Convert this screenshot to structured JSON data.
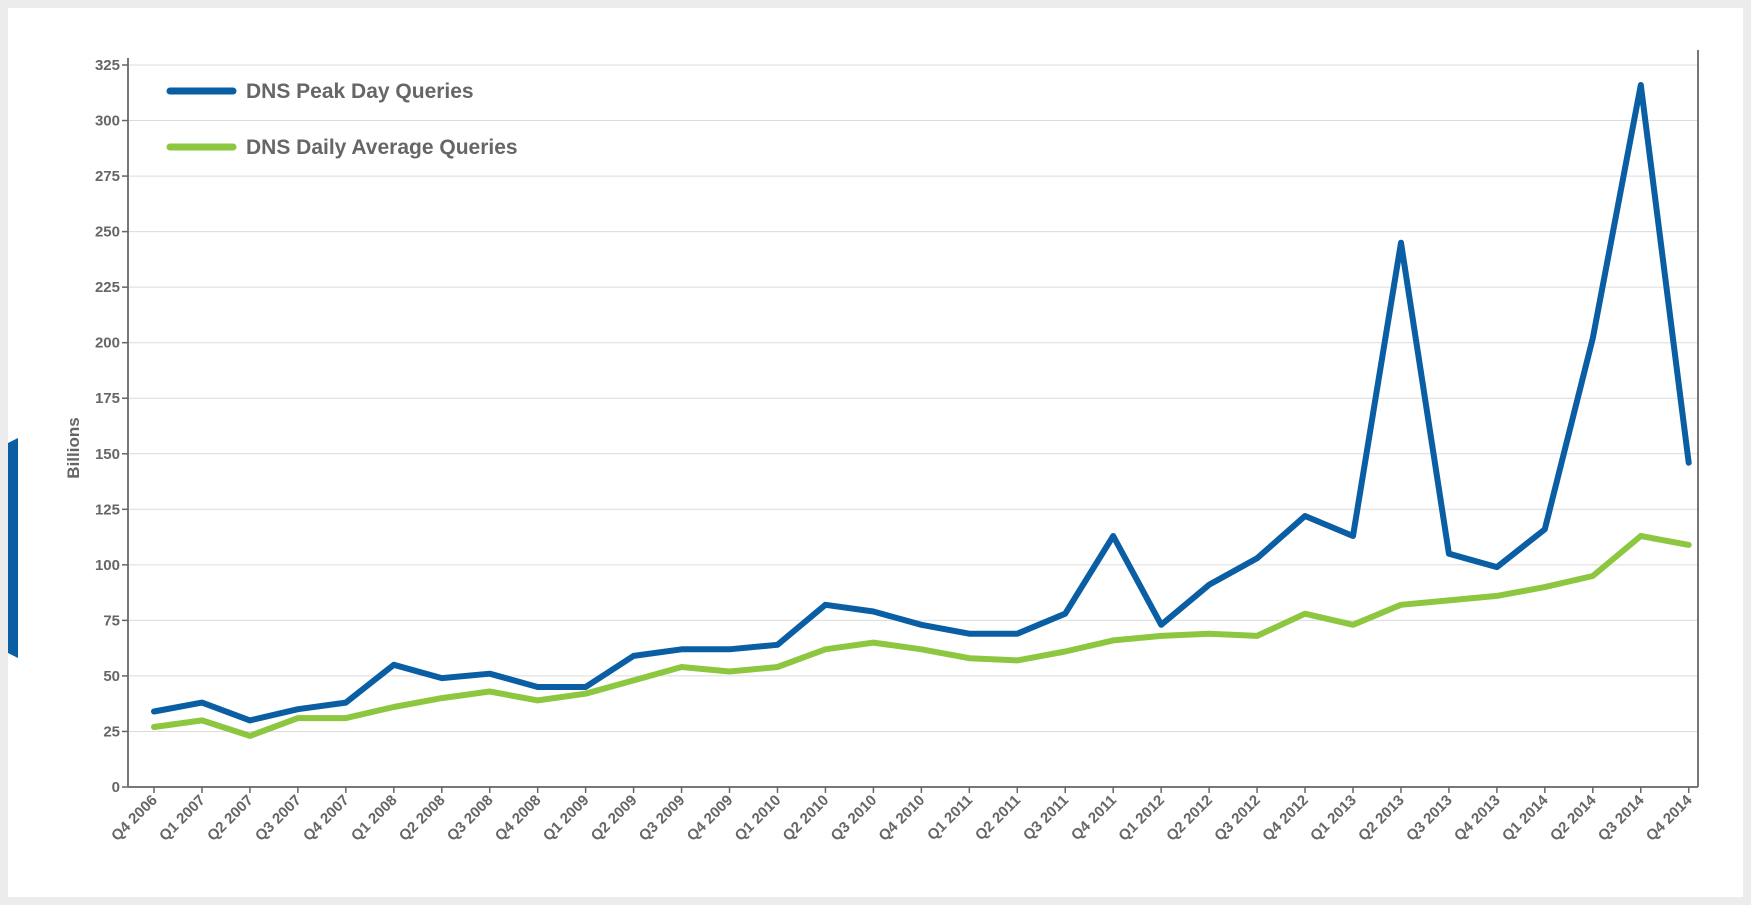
{
  "chart_data": {
    "type": "line",
    "title": "",
    "xlabel": "",
    "ylabel": "Billions",
    "ylim": [
      0,
      325
    ],
    "yticks": [
      0,
      25,
      50,
      75,
      100,
      125,
      150,
      175,
      200,
      225,
      250,
      275,
      300,
      325
    ],
    "grid": true,
    "legend_position": "top-left",
    "categories": [
      "Q4 2006",
      "Q1 2007",
      "Q2 2007",
      "Q3 2007",
      "Q4 2007",
      "Q1 2008",
      "Q2 2008",
      "Q3 2008",
      "Q4 2008",
      "Q1 2009",
      "Q2 2009",
      "Q3 2009",
      "Q4 2009",
      "Q1 2010",
      "Q2 2010",
      "Q3 2010",
      "Q4 2010",
      "Q1 2011",
      "Q2 2011",
      "Q3 2011",
      "Q4 2011",
      "Q1 2012",
      "Q2 2012",
      "Q3 2012",
      "Q4 2012",
      "Q1 2013",
      "Q2 2013",
      "Q3 2013",
      "Q4 2013",
      "Q1 2014",
      "Q2 2014",
      "Q3 2014",
      "Q4 2014"
    ],
    "series": [
      {
        "name": "DNS Peak Day Queries",
        "color": "#0a5ea3",
        "values": [
          34,
          38,
          30,
          35,
          38,
          55,
          49,
          51,
          45,
          45,
          59,
          62,
          62,
          64,
          82,
          79,
          73,
          69,
          69,
          78,
          113,
          73,
          91,
          103,
          122,
          113,
          245,
          105,
          99,
          116,
          202,
          316,
          146
        ]
      },
      {
        "name": "DNS Daily Average Queries",
        "color": "#8dc63f",
        "values": [
          27,
          30,
          23,
          31,
          31,
          36,
          40,
          43,
          39,
          42,
          48,
          54,
          52,
          54,
          62,
          65,
          62,
          58,
          57,
          61,
          66,
          68,
          69,
          68,
          78,
          73,
          82,
          84,
          86,
          90,
          95,
          113,
          109
        ]
      }
    ]
  }
}
